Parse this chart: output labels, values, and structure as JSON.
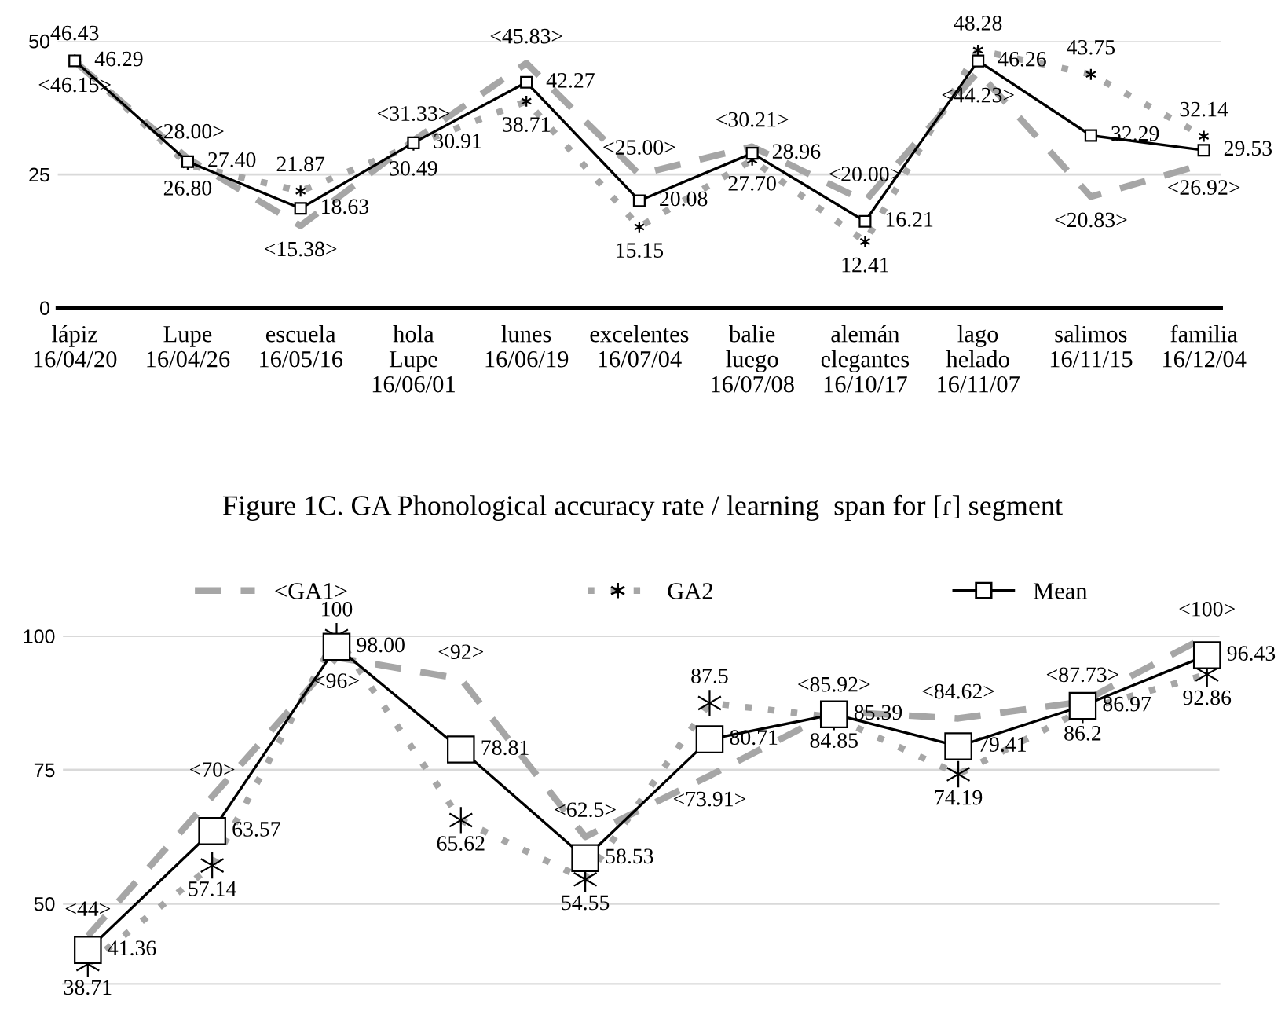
{
  "chart_data": [
    {
      "type": "line",
      "categories": [
        "lápiz\n16/04/20",
        "Lupe\n16/04/26",
        "escuela\n16/05/16",
        "hola\nLupe\n16/06/01",
        "lunes\n16/06/19",
        "excelentes\n16/07/04",
        "balie\nluego\n16/07/08",
        "alemán\nelegantes\n16/10/17",
        "lago\nhelado\n16/11/07",
        "salimos\n16/11/15",
        "familia\n16/12/04"
      ],
      "ylim": [
        0,
        50
      ],
      "yticks": [
        0,
        25,
        50
      ],
      "grid": "y",
      "legend": false,
      "series": [
        {
          "color": "#a6a6a6",
          "line_style": "dashed",
          "marker": "none",
          "values": [
            46.15,
            28.0,
            15.38,
            31.33,
            45.83,
            25.0,
            30.21,
            20.0,
            44.23,
            20.83,
            26.92
          ],
          "value_labels": [
            "<46.15>",
            "<28.00>",
            "<15.38>",
            "<31.33>",
            "<45.83>",
            "<25.00>",
            "<30.21>",
            "<20.00>",
            "<44.23>",
            "<20.83>",
            "<26.92>"
          ]
        },
        {
          "color": "#a6a6a6",
          "line_style": "dotted",
          "marker": "cross",
          "values": [
            46.43,
            26.8,
            21.87,
            30.49,
            38.71,
            15.15,
            27.7,
            12.41,
            48.28,
            43.75,
            32.14
          ],
          "value_labels": [
            "46.43",
            "26.80",
            "21.87",
            "30.49",
            "38.71",
            "15.15",
            "27.70",
            "12.41",
            "48.28",
            "43.75",
            "32.14"
          ]
        },
        {
          "color": "#000000",
          "line_style": "solid",
          "marker": "square",
          "values": [
            46.29,
            27.4,
            18.63,
            30.91,
            42.27,
            20.08,
            28.96,
            16.21,
            46.26,
            32.29,
            29.53
          ],
          "value_labels": [
            "46.29",
            "27.40",
            "18.63",
            "30.91",
            "42.27",
            "20.08",
            "28.96",
            "16.21",
            "46.26",
            "32.29",
            "29.53"
          ]
        }
      ]
    },
    {
      "type": "line",
      "title": "Figure 1C. GA Phonological accuracy rate / learning  span for [ɾ] segment",
      "categories": [
        null,
        null,
        null,
        null,
        null,
        null,
        null,
        null,
        null,
        null
      ],
      "ylim": [
        35,
        100
      ],
      "yticks": [
        50,
        75,
        100
      ],
      "grid": "y",
      "legend": "top",
      "series": [
        {
          "name": "<GA1>",
          "color": "#a6a6a6",
          "line_style": "dashed",
          "marker": "none",
          "values": [
            44,
            70,
            96,
            92,
            62.5,
            73.91,
            85.92,
            84.62,
            87.73,
            100
          ],
          "value_labels": [
            "<44>",
            "<70>",
            "<96>",
            "<92>",
            "<62.5>",
            "<73.91>",
            "<85.92>",
            "<84.62>",
            "<87.73>",
            "<100>"
          ]
        },
        {
          "name": "GA2",
          "color": "#a6a6a6",
          "line_style": "dotted",
          "marker": "cross",
          "values": [
            38.71,
            57.14,
            100,
            65.62,
            54.55,
            87.5,
            84.85,
            74.19,
            86.2,
            92.86
          ],
          "value_labels": [
            "38.71",
            "57.14",
            "100",
            "65.62",
            "54.55",
            "87.5",
            "84.85",
            "74.19",
            "86.2",
            "92.86"
          ]
        },
        {
          "name": "Mean",
          "color": "#000000",
          "line_style": "solid",
          "marker": "square",
          "values": [
            41.36,
            63.57,
            98.0,
            78.81,
            58.53,
            80.71,
            85.39,
            79.41,
            86.97,
            96.43
          ],
          "value_labels": [
            "41.36",
            "63.57",
            "98.00",
            "78.81",
            "58.53",
            "80.71",
            "85.39",
            "79.41",
            "86.97",
            "96.43"
          ]
        }
      ]
    }
  ]
}
